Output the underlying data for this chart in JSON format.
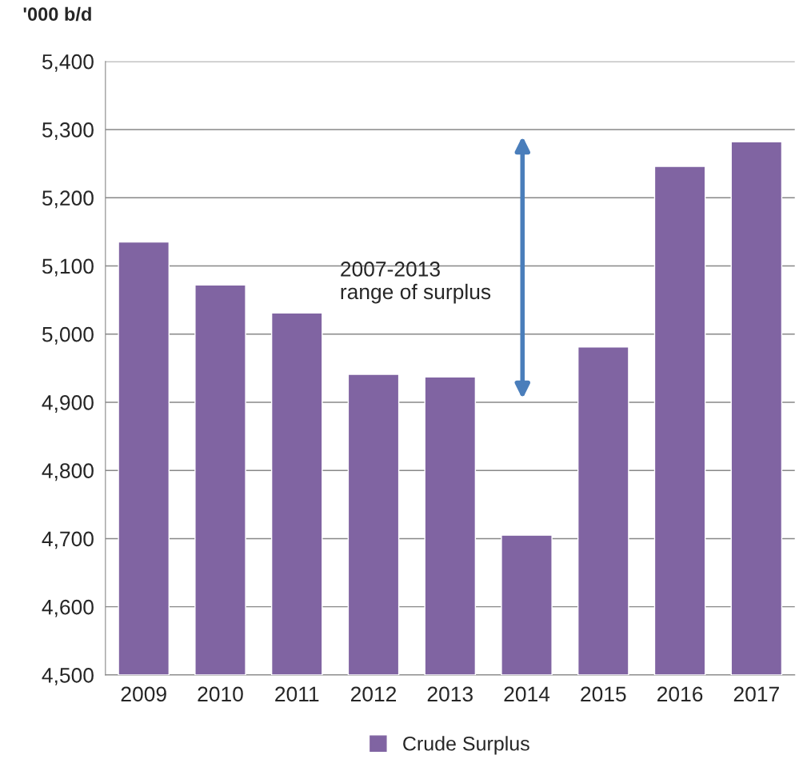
{
  "chart_data": {
    "type": "bar",
    "ylabel": "'000 b/d",
    "categories": [
      "2009",
      "2010",
      "2011",
      "2012",
      "2013",
      "2014",
      "2015",
      "2016",
      "2017"
    ],
    "series": [
      {
        "name": "Crude Surplus",
        "color": "#8064a2",
        "values": [
          5135,
          5072,
          5031,
          4941,
          4937,
          4705,
          4981,
          5246,
          5282
        ]
      }
    ],
    "ylim": [
      4500,
      5400
    ],
    "yticks": [
      {
        "value": 4500,
        "label": "4,500"
      },
      {
        "value": 4600,
        "label": "4,600"
      },
      {
        "value": 4700,
        "label": "4,700"
      },
      {
        "value": 4800,
        "label": "4,800"
      },
      {
        "value": 4900,
        "label": "4,900"
      },
      {
        "value": 5000,
        "label": "5,000"
      },
      {
        "value": 5100,
        "label": "5,100"
      },
      {
        "value": 5200,
        "label": "5,200"
      },
      {
        "value": 5300,
        "label": "5,300"
      },
      {
        "value": 5400,
        "label": "5,400"
      }
    ],
    "annotations": [
      "2007-2013\nrange of surplus"
    ],
    "grid": "y",
    "legend": "bottom"
  }
}
